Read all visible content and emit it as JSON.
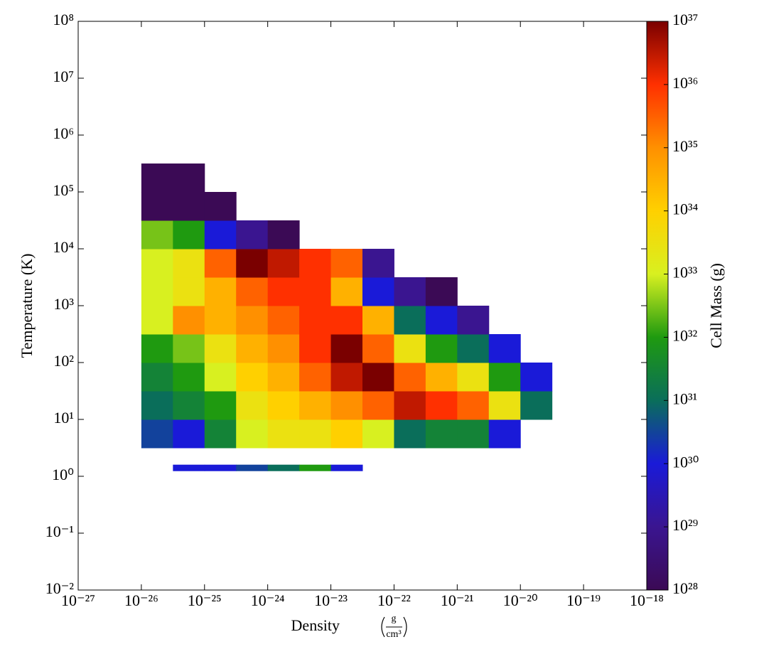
{
  "chart_data": {
    "type": "heatmap2d",
    "x_label": "Density",
    "x_unit": {
      "numerator": "g",
      "denominator": "cm³"
    },
    "y_label": "Temperature  (K)",
    "colorbar_label": "Cell Mass  (g)",
    "log_x": true,
    "log_y": true,
    "log_z": true,
    "xlim": [
      1e-27,
      1e-18
    ],
    "ylim": [
      0.01,
      100000000.0
    ],
    "zlim": [
      1e+28,
      1e+37
    ],
    "xticks": [
      {
        "value": 1e-27,
        "label": "10⁻²⁷"
      },
      {
        "value": 1e-26,
        "label": "10⁻²⁶"
      },
      {
        "value": 1e-25,
        "label": "10⁻²⁵"
      },
      {
        "value": 1e-24,
        "label": "10⁻²⁴"
      },
      {
        "value": 1e-23,
        "label": "10⁻²³"
      },
      {
        "value": 1e-22,
        "label": "10⁻²²"
      },
      {
        "value": 1e-21,
        "label": "10⁻²¹"
      },
      {
        "value": 1e-20,
        "label": "10⁻²⁰"
      },
      {
        "value": 1e-19,
        "label": "10⁻¹⁹"
      },
      {
        "value": 1e-18,
        "label": "10⁻¹⁸"
      }
    ],
    "yticks": [
      {
        "value": 0.01,
        "label": "10⁻²"
      },
      {
        "value": 0.1,
        "label": "10⁻¹"
      },
      {
        "value": 1,
        "label": "10⁰"
      },
      {
        "value": 10,
        "label": "10¹"
      },
      {
        "value": 100,
        "label": "10²"
      },
      {
        "value": 1000,
        "label": "10³"
      },
      {
        "value": 10000,
        "label": "10⁴"
      },
      {
        "value": 100000,
        "label": "10⁵"
      },
      {
        "value": 1000000,
        "label": "10⁶"
      },
      {
        "value": 10000000,
        "label": "10⁷"
      },
      {
        "value": 100000000,
        "label": "10⁸"
      }
    ],
    "zticks": [
      {
        "value": 1e+28,
        "label": "10²⁸"
      },
      {
        "value": 1e+29,
        "label": "10²⁹"
      },
      {
        "value": 1e+30,
        "label": "10³⁰"
      },
      {
        "value": 1e+31,
        "label": "10³¹"
      },
      {
        "value": 1e+32,
        "label": "10³²"
      },
      {
        "value": 1e+33,
        "label": "10³³"
      },
      {
        "value": 1e+34,
        "label": "10³⁴"
      },
      {
        "value": 1e+35,
        "label": "10³⁵"
      },
      {
        "value": 1e+36,
        "label": "10³⁶"
      },
      {
        "value": 1e+37,
        "label": "10³⁷"
      }
    ],
    "colormap": [
      "#3b0a55",
      "#3a1590",
      "#1a1ad8",
      "#0a6e5a",
      "#1f9a10",
      "#d8f020",
      "#ffd000",
      "#ff9000",
      "#ff3000",
      "#7a0000"
    ],
    "x_bins": [
      1e-26,
      3.162e-26,
      1e-25,
      3.162e-25,
      1e-24,
      3.162e-24,
      1e-23,
      3.162e-23,
      1e-22,
      3.162e-22,
      1e-21,
      3.162e-21,
      1e-20,
      3.162e-20
    ],
    "y_bins": [
      1.25,
      1.6,
      3.162,
      10,
      31.62,
      100,
      316.2,
      1000,
      3162,
      10000,
      31620,
      100000,
      316200
    ],
    "values": [
      [
        null,
        1e+30,
        1e+30,
        3e+30,
        1e+31,
        1e+32,
        1e+30,
        null,
        null,
        null,
        null,
        null,
        null
      ],
      [
        null,
        null,
        null,
        null,
        null,
        null,
        null,
        null,
        null,
        null,
        null,
        null,
        null
      ],
      [
        3e+30,
        1e+30,
        3e+31,
        1e+33,
        3e+33,
        3e+33,
        1e+34,
        1e+33,
        1e+31,
        3e+31,
        3e+31,
        1e+30,
        null
      ],
      [
        1e+31,
        3e+31,
        1e+32,
        3e+33,
        1e+34,
        3e+34,
        1e+35,
        3e+35,
        3e+36,
        1e+36,
        3e+35,
        3e+33,
        1e+31
      ],
      [
        3e+31,
        1e+32,
        1e+33,
        1e+34,
        3e+34,
        3e+35,
        3e+36,
        1e+37,
        3e+35,
        3e+34,
        3e+33,
        1e+32,
        1e+30
      ],
      [
        1e+32,
        3e+32,
        3e+33,
        3e+34,
        1e+35,
        1e+36,
        1e+37,
        3e+35,
        3e+33,
        1e+32,
        1e+31,
        1e+30,
        null
      ],
      [
        1e+33,
        1e+35,
        3e+34,
        1e+35,
        3e+35,
        1e+36,
        1e+36,
        3e+34,
        1e+31,
        1e+30,
        1e+29,
        null,
        null
      ],
      [
        1e+33,
        3e+33,
        3e+34,
        3e+35,
        1e+36,
        1e+36,
        3e+34,
        1e+30,
        1e+29,
        1e+28,
        null,
        null,
        null
      ],
      [
        1e+33,
        3e+33,
        3e+35,
        1e+37,
        3e+36,
        1e+36,
        3e+35,
        1e+29,
        null,
        null,
        null,
        null,
        null
      ],
      [
        3e+32,
        1e+32,
        1e+30,
        1e+29,
        1e+28,
        null,
        null,
        null,
        null,
        null,
        null,
        null,
        null
      ],
      [
        1e+28,
        1e+28,
        1e+28,
        null,
        null,
        null,
        null,
        null,
        null,
        null,
        null,
        null,
        null
      ],
      [
        1e+28,
        1e+28,
        null,
        null,
        null,
        null,
        null,
        null,
        null,
        null,
        null,
        null,
        null
      ]
    ]
  }
}
